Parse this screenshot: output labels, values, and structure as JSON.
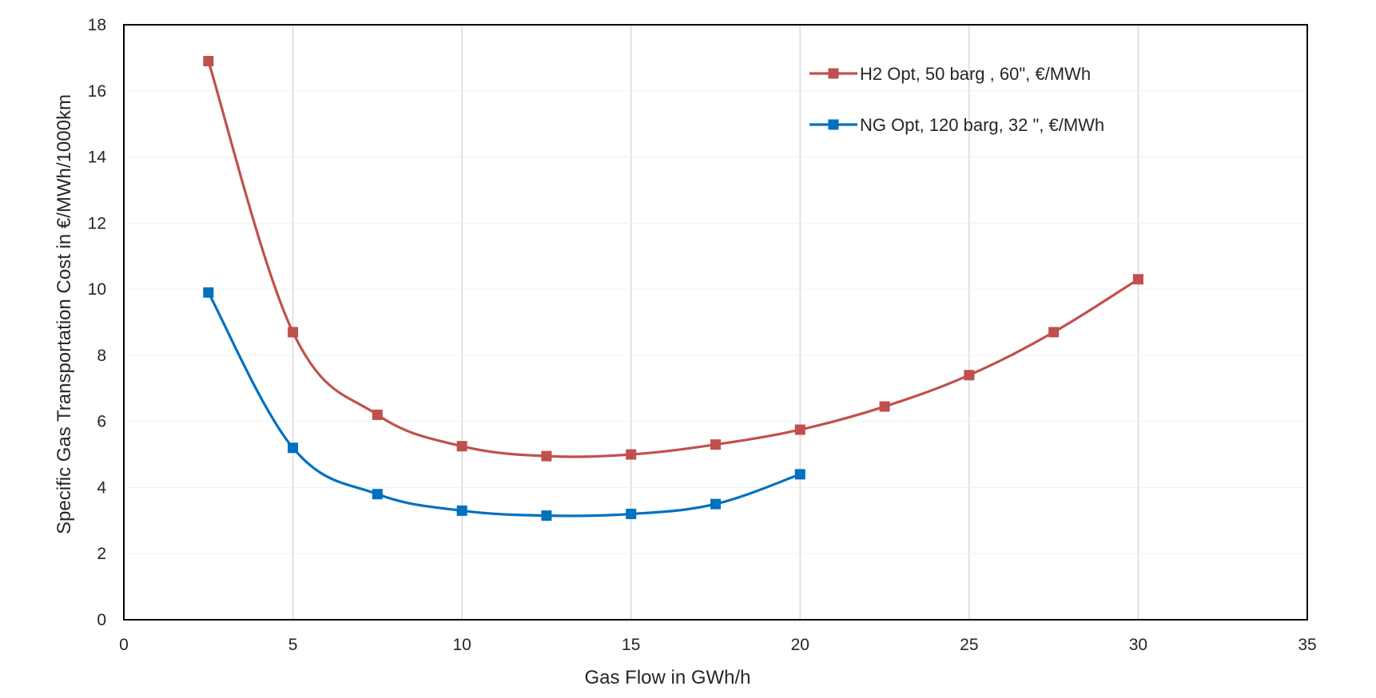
{
  "chart_data": {
    "type": "line",
    "title": "",
    "xlabel": "Gas Flow in GWh/h",
    "ylabel": "Specific Gas Transportation Cost in €/MWh/1000km",
    "xlim": [
      0,
      35
    ],
    "ylim": [
      0,
      18
    ],
    "xticks": [
      "0",
      "5",
      "10",
      "15",
      "20",
      "25",
      "30",
      "35"
    ],
    "yticks": [
      "0",
      "2",
      "4",
      "6",
      "8",
      "10",
      "12",
      "14",
      "16",
      "18"
    ],
    "grid": "vertical",
    "legend_position": "top-right",
    "series": [
      {
        "name": "H2 Opt, 50 barg , 60\", €/MWh",
        "color": "#c0504d",
        "marker": "square",
        "x": [
          2.5,
          5,
          7.5,
          10,
          12.5,
          15,
          17.5,
          20,
          22.5,
          25,
          27.5,
          30
        ],
        "y": [
          16.9,
          8.7,
          6.2,
          5.25,
          4.95,
          5.0,
          5.3,
          5.75,
          6.45,
          7.4,
          8.7,
          10.3
        ]
      },
      {
        "name": "NG Opt, 120 barg, 32 \", €/MWh",
        "color": "#0070c0",
        "marker": "square",
        "x": [
          2.5,
          5,
          7.5,
          10,
          12.5,
          15,
          17.5,
          20
        ],
        "y": [
          9.9,
          5.2,
          3.8,
          3.3,
          3.15,
          3.2,
          3.5,
          4.4
        ]
      }
    ]
  }
}
